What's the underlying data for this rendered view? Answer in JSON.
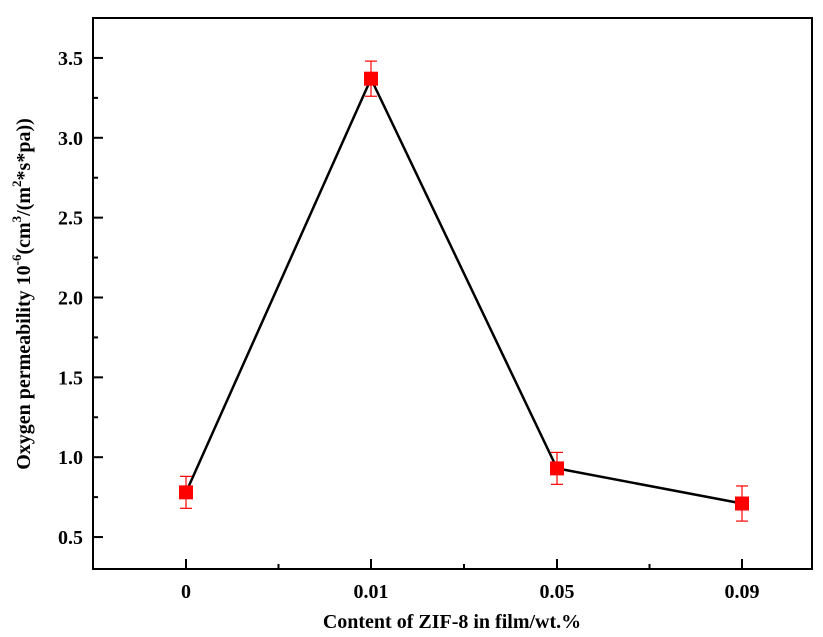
{
  "chart_data": {
    "type": "line",
    "categories": [
      "0",
      "0.01",
      "0.05",
      "0.09"
    ],
    "series": [
      {
        "values": [
          0.78,
          3.37,
          0.93,
          0.71
        ],
        "error": [
          0.1,
          0.11,
          0.1,
          0.11
        ],
        "color": "#ff0000",
        "line_color": "#000000",
        "marker": "square"
      }
    ],
    "xlabel": "Content of ZIF-8 in film/wt.%",
    "ylabel": {
      "prefix": "Oxygen permeability 10",
      "exp1": "-6",
      "mid1": "(cm",
      "exp2": "3",
      "mid2": "/(m",
      "exp3": "2",
      "suffix": "*s*pa))"
    },
    "ylim": [
      0.3,
      3.75
    ],
    "yticks": [
      0.5,
      1.0,
      1.5,
      2.0,
      2.5,
      3.0,
      3.5
    ],
    "ytick_labels": [
      "0.5",
      "1.0",
      "1.5",
      "2.0",
      "2.5",
      "3.0",
      "3.5"
    ],
    "grid": false
  }
}
